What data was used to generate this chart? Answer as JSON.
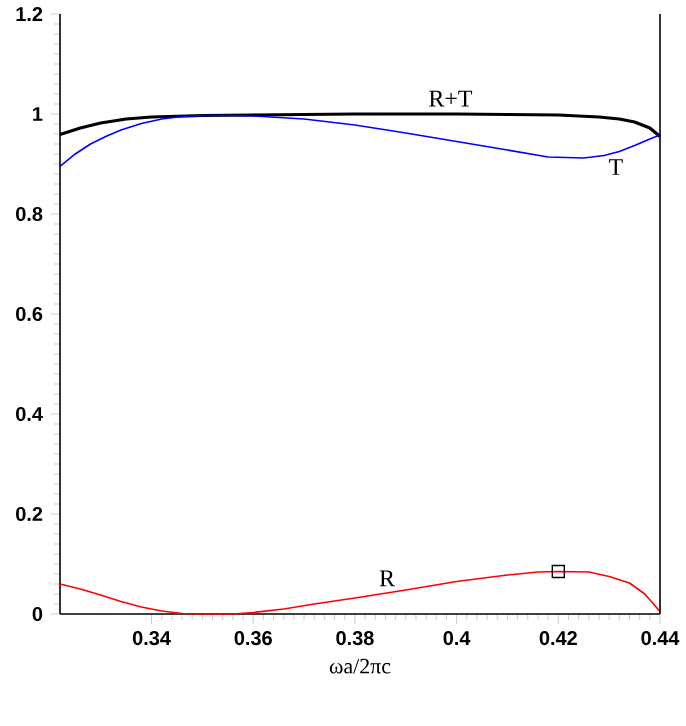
{
  "chart_data": {
    "type": "line",
    "xlabel": "ωa/2πc",
    "xlim": [
      0.322,
      0.44
    ],
    "ylim": [
      0,
      1.2
    ],
    "xticks": [
      0.34,
      0.36,
      0.38,
      0.4,
      0.42,
      0.44
    ],
    "yticks": [
      0,
      0.2,
      0.4,
      0.6,
      0.8,
      1,
      1.2
    ],
    "grid": false,
    "marker": "none",
    "line_style": "solid",
    "series": [
      {
        "name": "R+T",
        "color": "#000000",
        "x": [
          0.322,
          0.326,
          0.33,
          0.335,
          0.34,
          0.35,
          0.36,
          0.37,
          0.38,
          0.39,
          0.4,
          0.41,
          0.42,
          0.428,
          0.432,
          0.435,
          0.438,
          0.44
        ],
        "values": [
          0.959,
          0.972,
          0.982,
          0.99,
          0.994,
          0.997,
          0.998,
          0.999,
          1.0,
          1.0,
          1.0,
          0.999,
          0.998,
          0.994,
          0.99,
          0.984,
          0.972,
          0.955
        ]
      },
      {
        "name": "T",
        "color": "#0000ff",
        "x": [
          0.322,
          0.325,
          0.328,
          0.331,
          0.334,
          0.338,
          0.342,
          0.346,
          0.35,
          0.355,
          0.36,
          0.37,
          0.38,
          0.39,
          0.4,
          0.41,
          0.418,
          0.425,
          0.429,
          0.432,
          0.435,
          0.438,
          0.44
        ],
        "values": [
          0.895,
          0.92,
          0.94,
          0.955,
          0.968,
          0.981,
          0.99,
          0.995,
          0.997,
          0.997,
          0.996,
          0.99,
          0.978,
          0.962,
          0.945,
          0.928,
          0.914,
          0.912,
          0.917,
          0.925,
          0.937,
          0.95,
          0.958
        ]
      },
      {
        "name": "R",
        "color": "#ff0000",
        "x": [
          0.322,
          0.326,
          0.33,
          0.334,
          0.338,
          0.342,
          0.346,
          0.35,
          0.356,
          0.36,
          0.366,
          0.372,
          0.38,
          0.39,
          0.4,
          0.41,
          0.416,
          0.42,
          0.426,
          0.43,
          0.434,
          0.437,
          0.44
        ],
        "values": [
          0.06,
          0.05,
          0.038,
          0.025,
          0.014,
          0.006,
          0.001,
          0.0,
          0.0,
          0.003,
          0.01,
          0.02,
          0.032,
          0.048,
          0.065,
          0.078,
          0.084,
          0.085,
          0.084,
          0.075,
          0.062,
          0.04,
          0.005
        ]
      },
      {
        "type": "scatter",
        "marker": "square",
        "color": "#000000",
        "x": [
          0.42
        ],
        "values": [
          0.085
        ]
      }
    ]
  }
}
